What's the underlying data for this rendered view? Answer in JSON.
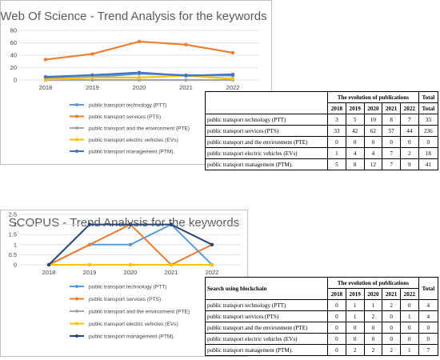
{
  "chart_data": [
    {
      "type": "line",
      "title": "Web Of Science - Trend Analysis for the keywords",
      "x": [
        "2018",
        "2019",
        "2020",
        "2021",
        "2022"
      ],
      "ylim": [
        0,
        80
      ],
      "yticks": [
        0,
        20,
        40,
        60,
        80
      ],
      "grid": true,
      "legend_position": "bottom",
      "series": [
        {
          "name": "public transport technology (PTT)",
          "color": "#5b9bd5",
          "values": [
            3,
            5,
            10,
            8,
            7
          ]
        },
        {
          "name": "public transport services (PTS)",
          "color": "#ed7d31",
          "values": [
            33,
            42,
            62,
            57,
            44
          ]
        },
        {
          "name": "public transport and the environment (PTE)",
          "color": "#a5a5a5",
          "values": [
            0,
            0,
            0,
            0,
            0
          ]
        },
        {
          "name": "public transport electric vehicles (EVs)",
          "color": "#ffc000",
          "values": [
            1,
            4,
            4,
            7,
            2
          ]
        },
        {
          "name": "public transport management (PTM).",
          "color": "#4472c4",
          "values": [
            5,
            8,
            12,
            7,
            9
          ]
        }
      ]
    },
    {
      "type": "line",
      "title": "SCOPUS - Trend Analysis for the keywords",
      "x": [
        "2018",
        "2019",
        "2020",
        "2021",
        "2022"
      ],
      "ylim": [
        0,
        2.5
      ],
      "yticks": [
        "0",
        "0.5",
        "1",
        "1.5",
        "2",
        "2.5"
      ],
      "grid": true,
      "legend_position": "bottom",
      "series": [
        {
          "name": "public transport technology (PTT)",
          "color": "#5b9bd5",
          "values": [
            0,
            1,
            1,
            2,
            0
          ]
        },
        {
          "name": "public transport services (PTS)",
          "color": "#ed7d31",
          "values": [
            0,
            1,
            2,
            0,
            1
          ]
        },
        {
          "name": "public transport and the environment (PTE)",
          "color": "#a5a5a5",
          "values": [
            0,
            0,
            0,
            0,
            0
          ]
        },
        {
          "name": "public transport electric vehicles (EVs)",
          "color": "#ffc000",
          "values": [
            0,
            0,
            0,
            0,
            0
          ]
        },
        {
          "name": "public transport management (PTM).",
          "color": "#264478",
          "values": [
            0,
            2,
            2,
            2,
            1
          ]
        }
      ]
    }
  ],
  "tables": {
    "wos": {
      "corner": "",
      "header_group": "The evolution of publications",
      "total_label": "Total",
      "years": [
        "2018",
        "2019",
        "2020",
        "2021",
        "2022"
      ],
      "rows": [
        {
          "name": "public transport technology (PTT)",
          "values": [
            "3",
            "5",
            "10",
            "8",
            "7"
          ],
          "total": "33"
        },
        {
          "name": "public transport services (PTS)",
          "values": [
            "33",
            "42",
            "62",
            "57",
            "44"
          ],
          "total": "236"
        },
        {
          "name": "public transport and the environment (PTE)",
          "values": [
            "0",
            "0",
            "0",
            "0",
            "0"
          ],
          "total": "0"
        },
        {
          "name": "public transport electric vehicles (EVs)",
          "values": [
            "1",
            "4",
            "4",
            "7",
            "2"
          ],
          "total": "18"
        },
        {
          "name": "public transport management (PTM).",
          "values": [
            "5",
            "8",
            "12",
            "7",
            "9"
          ],
          "total": "41"
        }
      ]
    },
    "scopus": {
      "corner": "Search using blockchain",
      "header_group": "The evolution of publications",
      "total_label": "Total",
      "years": [
        "2018",
        "2019",
        "2020",
        "2021",
        "2022"
      ],
      "rows": [
        {
          "name": "public transport technology (PTT)",
          "values": [
            "0",
            "1",
            "1",
            "2",
            "0"
          ],
          "total": "4"
        },
        {
          "name": "public transport services (PTS)",
          "values": [
            "0",
            "1",
            "2",
            "0",
            "1"
          ],
          "total": "4"
        },
        {
          "name": "public transport and the environment (PTE)",
          "values": [
            "0",
            "0",
            "0",
            "0",
            "0"
          ],
          "total": "0"
        },
        {
          "name": "public transport electric vehicles (EVs)",
          "values": [
            "0",
            "0",
            "0",
            "0",
            "0"
          ],
          "total": "0"
        },
        {
          "name": "public transport management (PTM).",
          "values": [
            "0",
            "2",
            "2",
            "2",
            "1"
          ],
          "total": "7"
        }
      ]
    }
  }
}
